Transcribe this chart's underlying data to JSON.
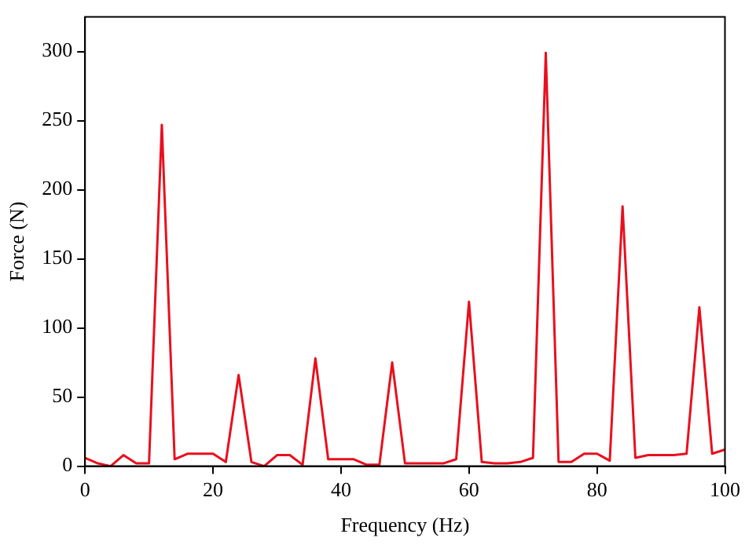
{
  "chart_data": {
    "type": "line",
    "xlabel": "Frequency (Hz)",
    "ylabel": "Force (N)",
    "x": [
      0,
      2,
      4,
      6,
      8,
      10,
      12,
      14,
      16,
      18,
      20,
      22,
      24,
      26,
      28,
      30,
      32,
      34,
      36,
      38,
      40,
      42,
      44,
      46,
      48,
      50,
      52,
      54,
      56,
      58,
      60,
      62,
      64,
      66,
      68,
      70,
      72,
      74,
      76,
      78,
      80,
      82,
      84,
      86,
      88,
      90,
      92,
      94,
      96,
      98,
      100
    ],
    "series": [
      {
        "color": "#e8101e",
        "values": [
          6,
          2,
          0,
          8,
          2,
          2,
          247,
          5,
          9,
          9,
          9,
          3,
          66,
          3,
          0,
          8,
          8,
          1,
          78,
          5,
          5,
          5,
          1,
          1,
          75,
          2,
          2,
          2,
          2,
          5,
          119,
          3,
          2,
          2,
          3,
          6,
          299,
          3,
          3,
          9,
          9,
          4,
          188,
          6,
          8,
          8,
          8,
          9,
          115,
          9,
          12
        ]
      }
    ],
    "xlim": [
      0,
      100
    ],
    "xticks": [
      0,
      20,
      40,
      60,
      80,
      100
    ],
    "ylim": [
      0,
      325
    ],
    "yticks": [
      0,
      50,
      100,
      150,
      200,
      250,
      300
    ],
    "grid": false,
    "legend": false,
    "marker": "none",
    "line_style": "solid"
  }
}
